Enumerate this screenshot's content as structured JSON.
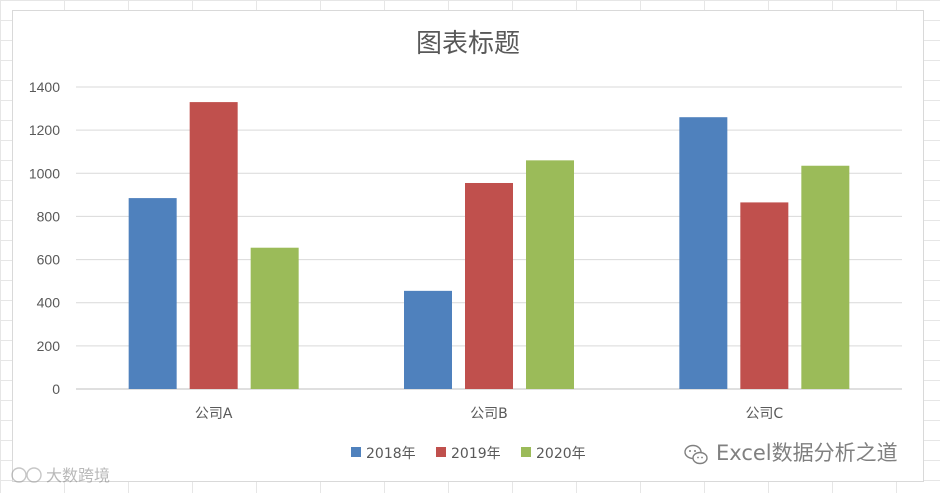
{
  "chart_data": {
    "type": "bar",
    "title": "图表标题",
    "categories": [
      "公司A",
      "公司B",
      "公司C"
    ],
    "series": [
      {
        "name": "2018年",
        "color": "#4f81bd",
        "values": [
          885,
          455,
          1260
        ]
      },
      {
        "name": "2019年",
        "color": "#c0504d",
        "values": [
          1330,
          955,
          865
        ]
      },
      {
        "name": "2020年",
        "color": "#9bbb59",
        "values": [
          655,
          1060,
          1035
        ]
      }
    ],
    "ylim": [
      0,
      1400
    ],
    "yticks": [
      0,
      200,
      400,
      600,
      800,
      1000,
      1200,
      1400
    ],
    "grid": true,
    "legend_position": "bottom",
    "xlabel": "",
    "ylabel": ""
  },
  "watermarks": {
    "wechat": "Excel数据分析之道",
    "corner": "大数跨境"
  }
}
